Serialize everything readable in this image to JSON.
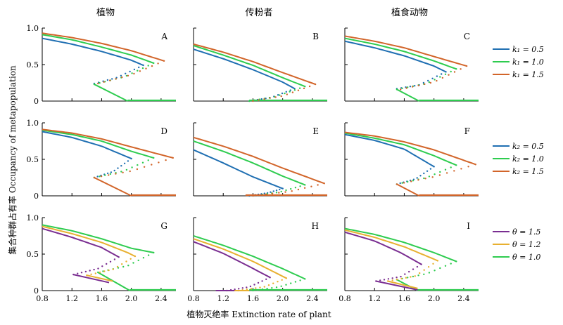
{
  "figure": {
    "column_titles": [
      "植物",
      "传粉者",
      "植食动物"
    ],
    "ylabel": "集合种群占有率 Occupancy of metapopulation",
    "xlabel": "植物灭绝率 Extinction rate of plant",
    "xlim": [
      0.8,
      2.6
    ],
    "ylim": [
      0,
      1.0
    ],
    "x_ticks": [
      "0.8",
      "1.2",
      "1.6",
      "2.0",
      "2.4"
    ],
    "y_ticks": [
      "0",
      "0.5",
      "1.0"
    ],
    "colors": {
      "blue": "#1f6fb2",
      "green": "#2ecc4f",
      "orange": "#d2652a",
      "purple": "#7a2e91",
      "gold": "#e8b030"
    },
    "legends": [
      {
        "entries": [
          {
            "label": "k₁ = 0.5",
            "color": "#1f6fb2"
          },
          {
            "label": "k₁ = 1.0",
            "color": "#2ecc4f"
          },
          {
            "label": "k₁ = 1.5",
            "color": "#d2652a"
          }
        ]
      },
      {
        "entries": [
          {
            "label": "k₂ = 0.5",
            "color": "#1f6fb2"
          },
          {
            "label": "k₂ = 1.0",
            "color": "#2ecc4f"
          },
          {
            "label": "k₂ = 1.5",
            "color": "#d2652a"
          }
        ]
      },
      {
        "entries": [
          {
            "label": "θ = 1.5",
            "color": "#7a2e91"
          },
          {
            "label": "θ = 1.2",
            "color": "#e8b030"
          },
          {
            "label": "θ = 1.0",
            "color": "#2ecc4f"
          }
        ]
      }
    ]
  },
  "chart_data": {
    "type": "line",
    "note_style": "solid = stable branch, dotted = unstable branch",
    "panels": [
      {
        "letter": "A",
        "series": [
          {
            "color": "#1f6fb2",
            "stable_x": [
              0.8,
              1.2,
              1.6,
              2.0,
              2.16
            ],
            "stable_y": [
              0.86,
              0.78,
              0.68,
              0.56,
              0.49
            ],
            "unstable_x": [
              1.5,
              1.8,
              2.16
            ],
            "unstable_y": [
              0.24,
              0.32,
              0.49
            ]
          },
          {
            "color": "#2ecc4f",
            "stable_x": [
              0.8,
              1.2,
              1.6,
              2.0,
              2.3
            ],
            "stable_y": [
              0.91,
              0.84,
              0.74,
              0.63,
              0.52
            ],
            "unstable_x": [
              1.5,
              1.9,
              2.3
            ],
            "unstable_y": [
              0.23,
              0.33,
              0.52
            ],
            "collapse_x": [
              1.5,
              1.95
            ],
            "collapse_y": [
              0.23,
              0.0
            ],
            "zero_x": [
              1.95,
              2.6
            ]
          },
          {
            "color": "#d2652a",
            "stable_x": [
              0.8,
              1.2,
              1.6,
              2.0,
              2.44
            ],
            "stable_y": [
              0.93,
              0.87,
              0.79,
              0.69,
              0.55
            ],
            "unstable_x": [
              1.55,
              2.0,
              2.44
            ],
            "unstable_y": [
              0.24,
              0.36,
              0.55
            ]
          }
        ]
      },
      {
        "letter": "B",
        "series": [
          {
            "color": "#1f6fb2",
            "stable_x": [
              0.8,
              1.2,
              1.6,
              2.0,
              2.16
            ],
            "stable_y": [
              0.71,
              0.58,
              0.43,
              0.26,
              0.17
            ],
            "unstable_x": [
              1.55,
              1.85,
              2.16
            ],
            "unstable_y": [
              0.0,
              0.05,
              0.17
            ]
          },
          {
            "color": "#2ecc4f",
            "stable_x": [
              0.8,
              1.2,
              1.6,
              2.0,
              2.3
            ],
            "stable_y": [
              0.76,
              0.63,
              0.49,
              0.32,
              0.2
            ],
            "unstable_x": [
              1.55,
              1.9,
              2.3
            ],
            "unstable_y": [
              0.0,
              0.06,
              0.2
            ],
            "zero_x": [
              1.55,
              2.6
            ]
          },
          {
            "color": "#d2652a",
            "stable_x": [
              0.8,
              1.2,
              1.6,
              2.0,
              2.44
            ],
            "stable_y": [
              0.78,
              0.67,
              0.54,
              0.39,
              0.23
            ],
            "unstable_x": [
              1.6,
              2.0,
              2.44
            ],
            "unstable_y": [
              0.0,
              0.07,
              0.23
            ]
          }
        ]
      },
      {
        "letter": "C",
        "series": [
          {
            "color": "#1f6fb2",
            "stable_x": [
              0.8,
              1.2,
              1.6,
              2.0,
              2.16
            ],
            "stable_y": [
              0.82,
              0.73,
              0.62,
              0.48,
              0.4
            ],
            "unstable_x": [
              1.5,
              1.8,
              2.16
            ],
            "unstable_y": [
              0.17,
              0.22,
              0.4
            ]
          },
          {
            "color": "#2ecc4f",
            "stable_x": [
              0.8,
              1.2,
              1.6,
              2.0,
              2.3
            ],
            "stable_y": [
              0.86,
              0.78,
              0.68,
              0.55,
              0.44
            ],
            "unstable_x": [
              1.5,
              1.9,
              2.3
            ],
            "unstable_y": [
              0.16,
              0.24,
              0.44
            ],
            "collapse_x": [
              1.5,
              1.8
            ],
            "collapse_y": [
              0.16,
              0.0
            ],
            "zero_x": [
              1.8,
              2.6
            ]
          },
          {
            "color": "#d2652a",
            "stable_x": [
              0.8,
              1.2,
              1.6,
              2.0,
              2.44
            ],
            "stable_y": [
              0.89,
              0.82,
              0.73,
              0.61,
              0.48
            ],
            "unstable_x": [
              1.55,
              2.0,
              2.44
            ],
            "unstable_y": [
              0.16,
              0.26,
              0.48
            ]
          }
        ]
      },
      {
        "letter": "D",
        "series": [
          {
            "color": "#1f6fb2",
            "stable_x": [
              0.8,
              1.2,
              1.6,
              2.0
            ],
            "stable_y": [
              0.88,
              0.8,
              0.68,
              0.51
            ],
            "unstable_x": [
              1.5,
              1.75,
              2.0
            ],
            "unstable_y": [
              0.25,
              0.33,
              0.51
            ]
          },
          {
            "color": "#2ecc4f",
            "stable_x": [
              0.8,
              1.2,
              1.6,
              2.0,
              2.3
            ],
            "stable_y": [
              0.9,
              0.84,
              0.75,
              0.61,
              0.52
            ],
            "unstable_x": [
              1.5,
              1.9,
              2.3
            ],
            "unstable_y": [
              0.25,
              0.34,
              0.52
            ]
          },
          {
            "color": "#d2652a",
            "stable_x": [
              0.8,
              1.2,
              1.6,
              2.0,
              2.56
            ],
            "stable_y": [
              0.91,
              0.86,
              0.78,
              0.67,
              0.52
            ],
            "unstable_x": [
              1.5,
              2.0,
              2.56
            ],
            "unstable_y": [
              0.25,
              0.34,
              0.52
            ],
            "collapse_x": [
              1.5,
              2.0
            ],
            "collapse_y": [
              0.25,
              0.0
            ],
            "zero_x": [
              2.0,
              2.6
            ]
          }
        ]
      },
      {
        "letter": "E",
        "series": [
          {
            "color": "#1f6fb2",
            "stable_x": [
              0.8,
              1.2,
              1.6,
              2.0
            ],
            "stable_y": [
              0.63,
              0.45,
              0.26,
              0.1
            ],
            "unstable_x": [
              1.55,
              1.8,
              2.0
            ],
            "unstable_y": [
              0.0,
              0.04,
              0.1
            ]
          },
          {
            "color": "#2ecc4f",
            "stable_x": [
              0.8,
              1.2,
              1.6,
              2.0,
              2.3
            ],
            "stable_y": [
              0.75,
              0.61,
              0.45,
              0.27,
              0.15
            ],
            "unstable_x": [
              1.6,
              1.95,
              2.3
            ],
            "unstable_y": [
              0.0,
              0.05,
              0.15
            ]
          },
          {
            "color": "#d2652a",
            "stable_x": [
              0.8,
              1.2,
              1.6,
              2.0,
              2.56
            ],
            "stable_y": [
              0.8,
              0.68,
              0.54,
              0.38,
              0.17
            ],
            "unstable_x": [
              1.6,
              2.1,
              2.56
            ],
            "unstable_y": [
              0.0,
              0.06,
              0.17
            ],
            "zero_x": [
              1.5,
              2.6
            ]
          }
        ]
      },
      {
        "letter": "F",
        "series": [
          {
            "color": "#1f6fb2",
            "stable_x": [
              0.8,
              1.2,
              1.6,
              2.0
            ],
            "stable_y": [
              0.84,
              0.76,
              0.64,
              0.4
            ],
            "unstable_x": [
              1.5,
              1.75,
              2.0
            ],
            "unstable_y": [
              0.16,
              0.23,
              0.4
            ]
          },
          {
            "color": "#2ecc4f",
            "stable_x": [
              0.8,
              1.2,
              1.6,
              2.0,
              2.3
            ],
            "stable_y": [
              0.86,
              0.79,
              0.7,
              0.55,
              0.42
            ],
            "unstable_x": [
              1.5,
              1.9,
              2.3
            ],
            "unstable_y": [
              0.16,
              0.25,
              0.42
            ]
          },
          {
            "color": "#d2652a",
            "stable_x": [
              0.8,
              1.2,
              1.6,
              2.0,
              2.56
            ],
            "stable_y": [
              0.87,
              0.82,
              0.74,
              0.63,
              0.43
            ],
            "unstable_x": [
              1.5,
              2.0,
              2.56
            ],
            "unstable_y": [
              0.16,
              0.26,
              0.43
            ],
            "collapse_x": [
              1.5,
              1.8
            ],
            "collapse_y": [
              0.16,
              0.0
            ],
            "zero_x": [
              1.8,
              2.6
            ]
          }
        ]
      },
      {
        "letter": "G",
        "series": [
          {
            "color": "#2ecc4f",
            "stable_x": [
              0.8,
              1.2,
              1.6,
              2.0,
              2.3
            ],
            "stable_y": [
              0.9,
              0.82,
              0.71,
              0.58,
              0.52
            ],
            "unstable_x": [
              1.55,
              1.95,
              2.3
            ],
            "unstable_y": [
              0.25,
              0.34,
              0.52
            ],
            "collapse_x": [
              1.55,
              1.98
            ],
            "collapse_y": [
              0.25,
              0.0
            ],
            "zero_x": [
              1.98,
              2.6
            ]
          },
          {
            "color": "#e8b030",
            "stable_x": [
              0.8,
              1.2,
              1.6,
              1.95,
              2.05
            ],
            "stable_y": [
              0.88,
              0.78,
              0.66,
              0.52,
              0.47
            ],
            "unstable_x": [
              1.4,
              1.75,
              2.05
            ],
            "unstable_y": [
              0.21,
              0.29,
              0.47
            ],
            "collapse_x": [
              1.4,
              1.75
            ],
            "collapse_y": [
              0.21,
              0.13
            ]
          },
          {
            "color": "#7a2e91",
            "stable_x": [
              0.8,
              1.2,
              1.6,
              1.83
            ],
            "stable_y": [
              0.85,
              0.73,
              0.59,
              0.46
            ],
            "unstable_x": [
              1.22,
              1.55,
              1.83
            ],
            "unstable_y": [
              0.22,
              0.3,
              0.46
            ],
            "collapse_x": [
              1.22,
              1.7
            ],
            "collapse_y": [
              0.22,
              0.11
            ]
          }
        ]
      },
      {
        "letter": "H",
        "series": [
          {
            "color": "#2ecc4f",
            "stable_x": [
              0.8,
              1.2,
              1.6,
              2.0,
              2.3
            ],
            "stable_y": [
              0.75,
              0.62,
              0.47,
              0.3,
              0.16
            ],
            "unstable_x": [
              1.6,
              1.95,
              2.3
            ],
            "unstable_y": [
              0.0,
              0.05,
              0.16
            ],
            "zero_x": [
              1.55,
              2.6
            ]
          },
          {
            "color": "#e8b030",
            "stable_x": [
              0.8,
              1.2,
              1.6,
              2.05
            ],
            "stable_y": [
              0.71,
              0.57,
              0.4,
              0.17
            ],
            "unstable_x": [
              1.4,
              1.75,
              2.05
            ],
            "unstable_y": [
              0.0,
              0.05,
              0.17
            ],
            "collapse_x": [
              1.35,
              1.55
            ],
            "collapse_y": [
              0.0,
              0.0
            ]
          },
          {
            "color": "#7a2e91",
            "stable_x": [
              0.8,
              1.2,
              1.55,
              1.83
            ],
            "stable_y": [
              0.67,
              0.51,
              0.33,
              0.18
            ],
            "unstable_x": [
              1.25,
              1.55,
              1.83
            ],
            "unstable_y": [
              0.0,
              0.05,
              0.18
            ],
            "collapse_x": [
              1.1,
              1.35
            ],
            "collapse_y": [
              0.0,
              0.0
            ]
          }
        ]
      },
      {
        "letter": "I",
        "series": [
          {
            "color": "#2ecc4f",
            "stable_x": [
              0.8,
              1.2,
              1.6,
              2.0,
              2.3
            ],
            "stable_y": [
              0.85,
              0.77,
              0.66,
              0.52,
              0.4
            ],
            "unstable_x": [
              1.5,
              1.9,
              2.3
            ],
            "unstable_y": [
              0.15,
              0.23,
              0.4
            ],
            "collapse_x": [
              1.5,
              1.78
            ],
            "collapse_y": [
              0.15,
              0.0
            ],
            "zero_x": [
              1.78,
              2.6
            ]
          },
          {
            "color": "#e8b030",
            "stable_x": [
              0.8,
              1.2,
              1.6,
              2.05
            ],
            "stable_y": [
              0.83,
              0.73,
              0.6,
              0.41
            ],
            "unstable_x": [
              1.38,
              1.75,
              2.05
            ],
            "unstable_y": [
              0.13,
              0.2,
              0.41
            ],
            "collapse_x": [
              1.38,
              1.78
            ],
            "collapse_y": [
              0.13,
              0.03
            ]
          },
          {
            "color": "#7a2e91",
            "stable_x": [
              0.8,
              1.2,
              1.55,
              1.83
            ],
            "stable_y": [
              0.8,
              0.68,
              0.52,
              0.36
            ],
            "unstable_x": [
              1.22,
              1.55,
              1.83
            ],
            "unstable_y": [
              0.13,
              0.19,
              0.36
            ],
            "collapse_x": [
              1.22,
              1.78
            ],
            "collapse_y": [
              0.13,
              0.01
            ]
          }
        ]
      }
    ]
  }
}
